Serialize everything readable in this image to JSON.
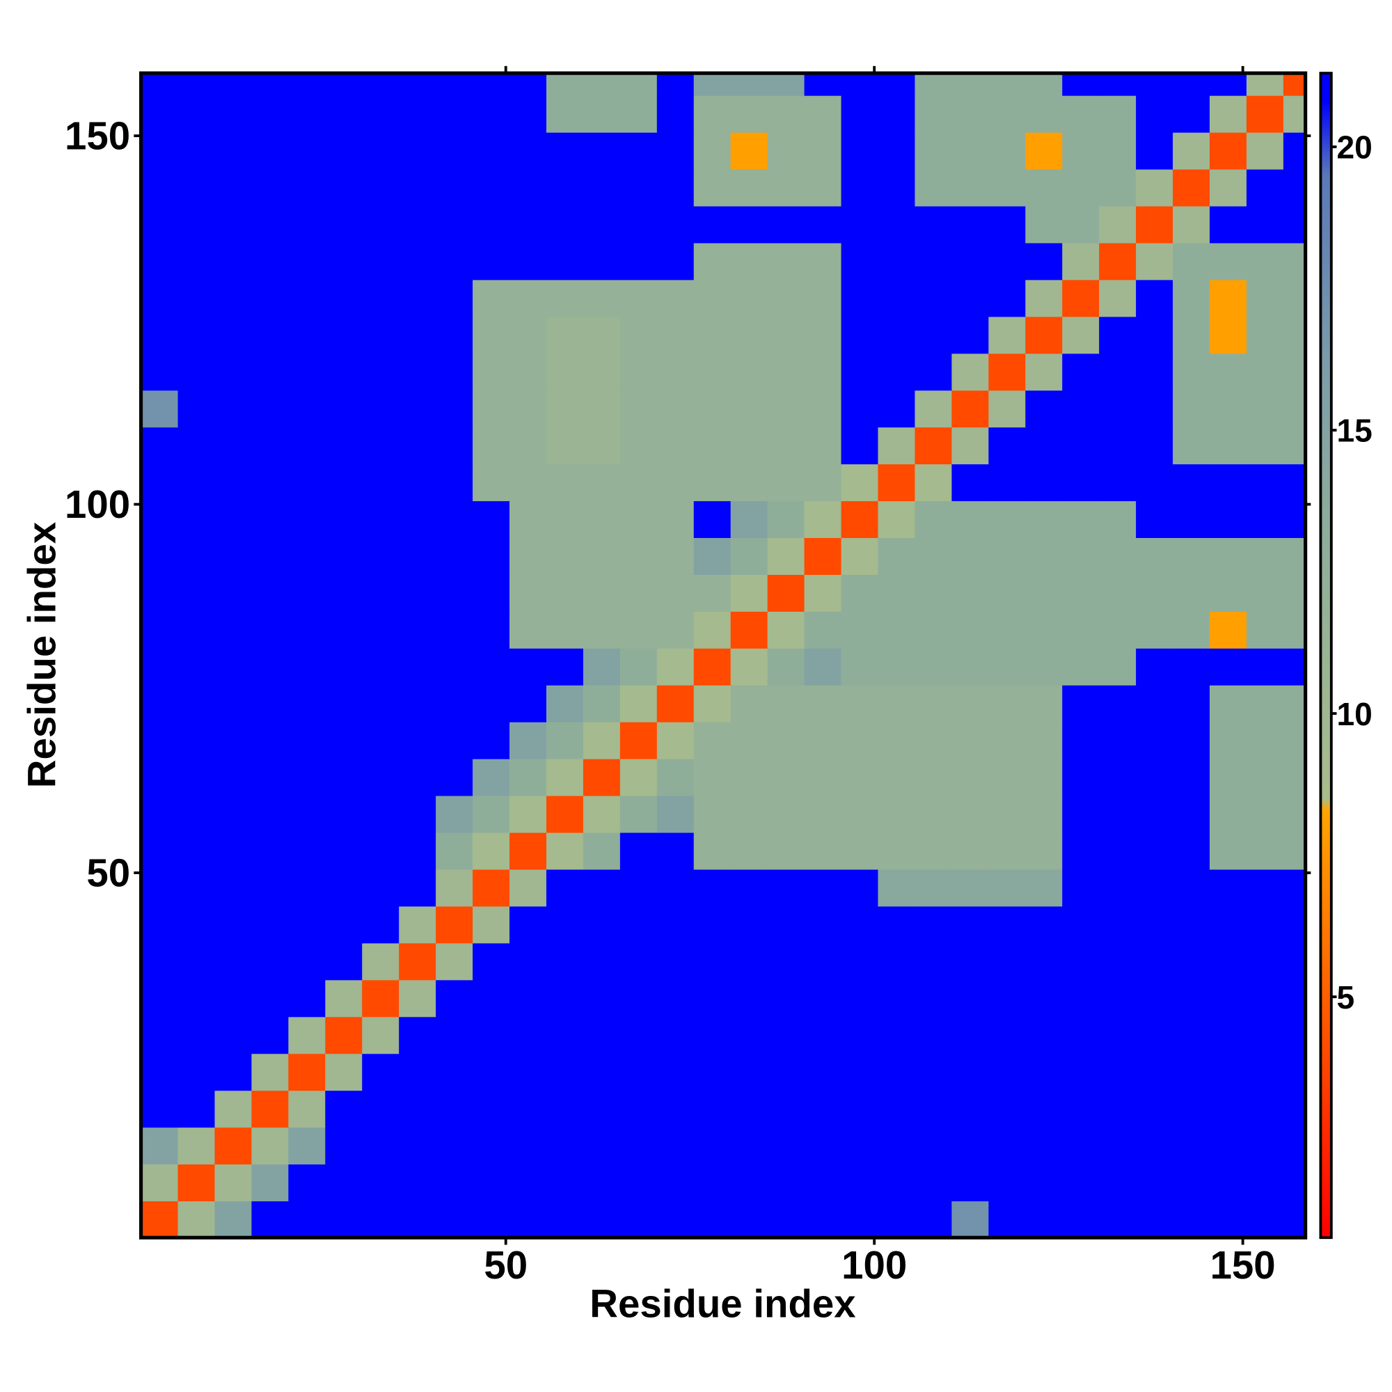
{
  "chart_data": {
    "type": "heatmap",
    "x_label": "Residue index",
    "y_label": "Residue index",
    "xlim": [
      0.5,
      158.5
    ],
    "ylim": [
      0.5,
      158.5
    ],
    "xticks": [
      50,
      100,
      150
    ],
    "yticks": [
      50,
      100,
      150
    ],
    "zlim": [
      0.75,
      21.3
    ],
    "zticks": [
      5,
      10,
      15,
      20
    ],
    "colorscale": [
      [
        0.75,
        "#ff0000"
      ],
      [
        4.5,
        "#ff5500"
      ],
      [
        8.3,
        "#ffa500"
      ],
      [
        8.5,
        "#a8bc8c"
      ],
      [
        13,
        "#8fae9a"
      ],
      [
        16,
        "#7d9ea8"
      ],
      [
        19.5,
        "#5a78b8"
      ],
      [
        20.8,
        "#0000ff"
      ],
      [
        21.3,
        "#0000ff"
      ]
    ],
    "x_bins": [
      0.5,
      5.5,
      10.5,
      15.5,
      20.5,
      25.5,
      30.5,
      35.5,
      40.5,
      45.5,
      50.5,
      55.5,
      60.5,
      65.5,
      70.5,
      75.5,
      80.5,
      85.5,
      90.5,
      95.5,
      100.5,
      105.5,
      110.5,
      115.5,
      120.5,
      125.5,
      130.5,
      135.5,
      140.5,
      145.5,
      150.5,
      155.5,
      158.5
    ],
    "y_bins": [
      0.5,
      5.5,
      10.5,
      15.5,
      20.5,
      25.5,
      30.5,
      35.5,
      40.5,
      45.5,
      50.5,
      55.5,
      60.5,
      65.5,
      70.5,
      75.5,
      80.5,
      85.5,
      90.5,
      95.5,
      100.5,
      105.5,
      110.5,
      115.5,
      120.5,
      125.5,
      130.5,
      135.5,
      140.5,
      145.5,
      150.5,
      155.5,
      158.5
    ],
    "z": [
      [
        4,
        10,
        15,
        21,
        21,
        21,
        21,
        21,
        21,
        21,
        21,
        21,
        21,
        21,
        21,
        21,
        21,
        21,
        21,
        21,
        21,
        21,
        17,
        21,
        21,
        21,
        21,
        21,
        21,
        21,
        21,
        21
      ],
      [
        10,
        4,
        10,
        15,
        21,
        21,
        21,
        21,
        21,
        21,
        21,
        21,
        21,
        21,
        21,
        21,
        21,
        21,
        21,
        21,
        21,
        21,
        21,
        21,
        21,
        21,
        21,
        21,
        21,
        21,
        21,
        21
      ],
      [
        15,
        10,
        4,
        10,
        15,
        21,
        21,
        21,
        21,
        21,
        21,
        21,
        21,
        21,
        21,
        21,
        21,
        21,
        21,
        21,
        21,
        21,
        21,
        21,
        21,
        21,
        21,
        21,
        21,
        21,
        21,
        21
      ],
      [
        21,
        21,
        10,
        4,
        10,
        21,
        21,
        21,
        21,
        21,
        21,
        21,
        21,
        21,
        21,
        21,
        21,
        21,
        21,
        21,
        21,
        21,
        21,
        21,
        21,
        21,
        21,
        21,
        21,
        21,
        21,
        21
      ],
      [
        21,
        21,
        21,
        10,
        4,
        10,
        21,
        21,
        21,
        21,
        21,
        21,
        21,
        21,
        21,
        21,
        21,
        21,
        21,
        21,
        21,
        21,
        21,
        21,
        21,
        21,
        21,
        21,
        21,
        21,
        21,
        21
      ],
      [
        21,
        21,
        21,
        21,
        10,
        4,
        10,
        21,
        21,
        21,
        21,
        21,
        21,
        21,
        21,
        21,
        21,
        21,
        21,
        21,
        21,
        21,
        21,
        21,
        21,
        21,
        21,
        21,
        21,
        21,
        21,
        21
      ],
      [
        21,
        21,
        21,
        21,
        21,
        10,
        4,
        10,
        21,
        21,
        21,
        21,
        21,
        21,
        21,
        21,
        21,
        21,
        21,
        21,
        21,
        21,
        21,
        21,
        21,
        21,
        21,
        21,
        21,
        21,
        21,
        21
      ],
      [
        21,
        21,
        21,
        21,
        21,
        21,
        10,
        4,
        10,
        21,
        21,
        21,
        21,
        21,
        21,
        21,
        21,
        21,
        21,
        21,
        21,
        21,
        21,
        21,
        21,
        21,
        21,
        21,
        21,
        21,
        21,
        21
      ],
      [
        21,
        21,
        21,
        21,
        21,
        21,
        21,
        10,
        4,
        10,
        21,
        21,
        21,
        21,
        21,
        21,
        21,
        21,
        21,
        21,
        21,
        21,
        21,
        21,
        21,
        21,
        21,
        21,
        21,
        21,
        21,
        21
      ],
      [
        21,
        21,
        21,
        21,
        21,
        21,
        21,
        21,
        10,
        4,
        10,
        21,
        21,
        21,
        21,
        21,
        21,
        21,
        21,
        21,
        14,
        14,
        14,
        14,
        14,
        21,
        21,
        21,
        21,
        21,
        21,
        21
      ],
      [
        21,
        21,
        21,
        21,
        21,
        21,
        21,
        21,
        13,
        9,
        4,
        9,
        13,
        21,
        21,
        12,
        12,
        12,
        12,
        12,
        12,
        12,
        12,
        12,
        12,
        21,
        21,
        21,
        21,
        13,
        13,
        13
      ],
      [
        21,
        21,
        21,
        21,
        21,
        21,
        21,
        21,
        15,
        13,
        9,
        4,
        9,
        13,
        15,
        12,
        12,
        12,
        12,
        12,
        12,
        12,
        12,
        12,
        12,
        21,
        21,
        21,
        21,
        13,
        13,
        13
      ],
      [
        21,
        21,
        21,
        21,
        21,
        21,
        21,
        21,
        21,
        15,
        13,
        9,
        4,
        9,
        13,
        12,
        12,
        12,
        12,
        12,
        12,
        12,
        12,
        12,
        12,
        21,
        21,
        21,
        21,
        13,
        13,
        13
      ],
      [
        21,
        21,
        21,
        21,
        21,
        21,
        21,
        21,
        21,
        21,
        15,
        13,
        9,
        4,
        9,
        12,
        12,
        12,
        12,
        12,
        12,
        12,
        12,
        12,
        12,
        21,
        21,
        21,
        21,
        13,
        13,
        13
      ],
      [
        21,
        21,
        21,
        21,
        21,
        21,
        21,
        21,
        21,
        21,
        21,
        15,
        13,
        9,
        4,
        9,
        12,
        12,
        12,
        12,
        12,
        12,
        12,
        12,
        12,
        21,
        21,
        21,
        21,
        13,
        13,
        13
      ],
      [
        21,
        21,
        21,
        21,
        21,
        21,
        21,
        21,
        21,
        21,
        21,
        21,
        15,
        13,
        9,
        4,
        9,
        13,
        15,
        13,
        13,
        13,
        13,
        13,
        13,
        13,
        13,
        21,
        21,
        21,
        21,
        21
      ],
      [
        21,
        21,
        21,
        21,
        21,
        21,
        21,
        21,
        21,
        21,
        12,
        12,
        12,
        12,
        12,
        9,
        4,
        9,
        13,
        13,
        13,
        13,
        13,
        13,
        13,
        13,
        13,
        13,
        13,
        8,
        13,
        13
      ],
      [
        21,
        21,
        21,
        21,
        21,
        21,
        21,
        21,
        21,
        21,
        12,
        12,
        12,
        12,
        12,
        12,
        9,
        4,
        9,
        13,
        13,
        13,
        13,
        13,
        13,
        13,
        13,
        13,
        13,
        13,
        13,
        13
      ],
      [
        21,
        21,
        21,
        21,
        21,
        21,
        21,
        21,
        21,
        21,
        12,
        12,
        12,
        12,
        12,
        15,
        13,
        9,
        4,
        9,
        13,
        13,
        13,
        13,
        13,
        13,
        13,
        13,
        13,
        13,
        13,
        13
      ],
      [
        21,
        21,
        21,
        21,
        21,
        21,
        21,
        21,
        21,
        21,
        12,
        12,
        12,
        12,
        12,
        21,
        15,
        13,
        9,
        4,
        9,
        13,
        13,
        13,
        13,
        13,
        13,
        21,
        21,
        21,
        21,
        21
      ],
      [
        21,
        21,
        21,
        21,
        21,
        21,
        21,
        21,
        21,
        12,
        12,
        12,
        12,
        12,
        12,
        12,
        12,
        12,
        12,
        9,
        4,
        9,
        21,
        21,
        21,
        21,
        21,
        21,
        21,
        21,
        21,
        21
      ],
      [
        21,
        21,
        21,
        21,
        21,
        21,
        21,
        21,
        21,
        12,
        12,
        11,
        11,
        12,
        12,
        12,
        12,
        12,
        12,
        21,
        10,
        4,
        10,
        21,
        21,
        21,
        21,
        21,
        13,
        13,
        13,
        13
      ],
      [
        17,
        21,
        21,
        21,
        21,
        21,
        21,
        21,
        21,
        12,
        12,
        11,
        11,
        12,
        12,
        12,
        12,
        12,
        12,
        21,
        21,
        10,
        4,
        10,
        21,
        21,
        21,
        21,
        13,
        13,
        13,
        13
      ],
      [
        21,
        21,
        21,
        21,
        21,
        21,
        21,
        21,
        21,
        12,
        12,
        11,
        11,
        12,
        12,
        12,
        12,
        12,
        12,
        21,
        21,
        21,
        10,
        4,
        10,
        21,
        21,
        21,
        13,
        13,
        13,
        13
      ],
      [
        21,
        21,
        21,
        21,
        21,
        21,
        21,
        21,
        21,
        12,
        12,
        11,
        11,
        12,
        12,
        12,
        12,
        12,
        12,
        21,
        21,
        21,
        21,
        10,
        4,
        10,
        21,
        21,
        13,
        8,
        13,
        13
      ],
      [
        21,
        21,
        21,
        21,
        21,
        21,
        21,
        21,
        21,
        12,
        12,
        12,
        12,
        12,
        12,
        12,
        12,
        12,
        12,
        21,
        21,
        21,
        21,
        21,
        10,
        4,
        10,
        21,
        13,
        8,
        13,
        13
      ],
      [
        21,
        21,
        21,
        21,
        21,
        21,
        21,
        21,
        21,
        21,
        21,
        21,
        21,
        21,
        21,
        12,
        12,
        12,
        12,
        21,
        21,
        21,
        21,
        21,
        21,
        10,
        4,
        10,
        13,
        13,
        13,
        13
      ],
      [
        21,
        21,
        21,
        21,
        21,
        21,
        21,
        21,
        21,
        21,
        21,
        21,
        21,
        21,
        21,
        21,
        21,
        21,
        21,
        21,
        21,
        21,
        21,
        21,
        13,
        13,
        10,
        4,
        10,
        21,
        21,
        21
      ],
      [
        21,
        21,
        21,
        21,
        21,
        21,
        21,
        21,
        21,
        21,
        21,
        21,
        21,
        21,
        21,
        12,
        12,
        12,
        12,
        21,
        21,
        13,
        13,
        13,
        13,
        13,
        13,
        10,
        4,
        10,
        21,
        21
      ],
      [
        21,
        21,
        21,
        21,
        21,
        21,
        21,
        21,
        21,
        21,
        21,
        21,
        21,
        21,
        21,
        12,
        8,
        12,
        12,
        21,
        21,
        13,
        13,
        13,
        8,
        13,
        13,
        21,
        10,
        4,
        10,
        21
      ],
      [
        21,
        21,
        21,
        21,
        21,
        21,
        21,
        21,
        21,
        21,
        21,
        13,
        13,
        13,
        21,
        12,
        12,
        12,
        12,
        21,
        21,
        13,
        13,
        13,
        13,
        13,
        13,
        21,
        21,
        10,
        4,
        10
      ],
      [
        21,
        21,
        21,
        21,
        21,
        21,
        21,
        21,
        21,
        21,
        21,
        13,
        13,
        13,
        21,
        15,
        15,
        15,
        21,
        21,
        21,
        13,
        13,
        13,
        13,
        21,
        21,
        21,
        21,
        21,
        10,
        4
      ]
    ]
  }
}
